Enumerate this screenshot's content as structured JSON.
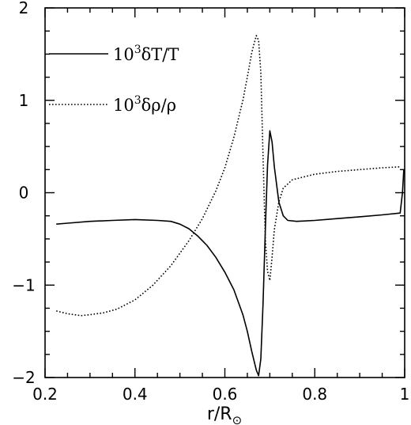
{
  "chart_data": {
    "type": "line",
    "xlabel": "r/R",
    "xlabel_subscript": "⊙",
    "ylabel": "",
    "xlim": [
      0.2,
      1.0
    ],
    "ylim": [
      -2,
      2
    ],
    "xticks": [
      0.2,
      0.4,
      0.6,
      0.8,
      1.0
    ],
    "xtick_labels": [
      "0.2",
      "0.4",
      "0.6",
      "0.8",
      "1"
    ],
    "yticks": [
      -2,
      -1,
      0,
      1,
      2
    ],
    "ytick_labels": [
      "−2",
      "−1",
      "0",
      "1",
      "2"
    ],
    "legend_placement": "top-left",
    "series": [
      {
        "name": "10³δT/T",
        "legend": {
          "coef": "10",
          "exp": "3",
          "body": "δT/T"
        },
        "style": "solid",
        "color": "#000000",
        "x": [
          0.225,
          0.25,
          0.3,
          0.35,
          0.4,
          0.45,
          0.48,
          0.5,
          0.52,
          0.54,
          0.56,
          0.58,
          0.6,
          0.62,
          0.64,
          0.65,
          0.66,
          0.67,
          0.675,
          0.68,
          0.685,
          0.69,
          0.695,
          0.7,
          0.705,
          0.71,
          0.72,
          0.73,
          0.74,
          0.76,
          0.8,
          0.85,
          0.9,
          0.95,
          0.99,
          0.995,
          0.998
        ],
        "y": [
          -0.34,
          -0.33,
          -0.31,
          -0.3,
          -0.29,
          -0.3,
          -0.31,
          -0.34,
          -0.39,
          -0.47,
          -0.57,
          -0.7,
          -0.86,
          -1.05,
          -1.32,
          -1.5,
          -1.72,
          -1.92,
          -1.98,
          -1.8,
          -1.2,
          -0.4,
          0.3,
          0.67,
          0.55,
          0.28,
          -0.1,
          -0.25,
          -0.3,
          -0.31,
          -0.3,
          -0.28,
          -0.26,
          -0.24,
          -0.22,
          0.0,
          0.25
        ]
      },
      {
        "name": "10³δρ/ρ",
        "legend": {
          "coef": "10",
          "exp": "3",
          "body": "δρ/ρ"
        },
        "style": "dotted",
        "color": "#000000",
        "x": [
          0.225,
          0.25,
          0.28,
          0.3,
          0.33,
          0.36,
          0.4,
          0.44,
          0.48,
          0.52,
          0.55,
          0.58,
          0.6,
          0.62,
          0.64,
          0.65,
          0.66,
          0.67,
          0.675,
          0.68,
          0.685,
          0.69,
          0.695,
          0.7,
          0.705,
          0.71,
          0.72,
          0.73,
          0.75,
          0.8,
          0.85,
          0.9,
          0.95,
          0.99
        ],
        "y": [
          -1.28,
          -1.31,
          -1.33,
          -1.32,
          -1.3,
          -1.26,
          -1.16,
          -1.0,
          -0.79,
          -0.52,
          -0.28,
          0.02,
          0.27,
          0.6,
          1.0,
          1.25,
          1.52,
          1.7,
          1.65,
          1.3,
          0.4,
          -0.5,
          -0.85,
          -0.95,
          -0.7,
          -0.4,
          -0.1,
          0.05,
          0.14,
          0.2,
          0.23,
          0.25,
          0.27,
          0.28
        ]
      }
    ]
  }
}
